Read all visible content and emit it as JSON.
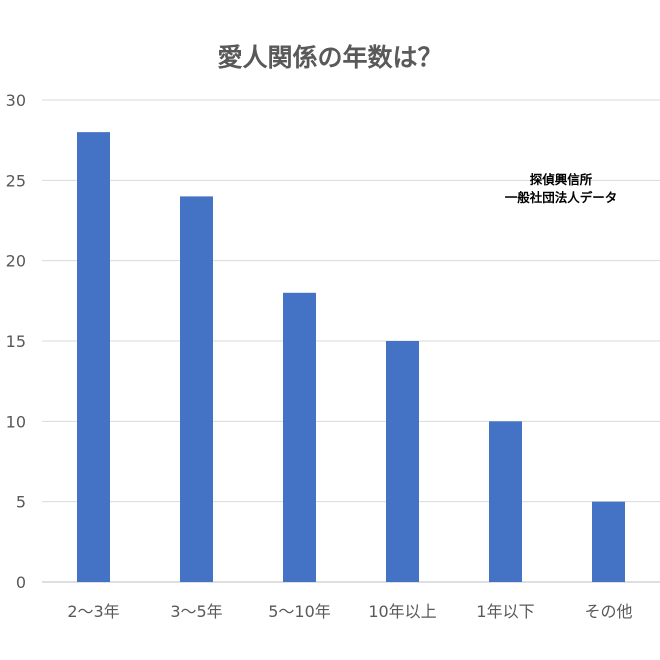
{
  "chart_data": {
    "type": "bar",
    "title": "愛人関係の年数は？",
    "annotation": [
      "探偵興信所",
      "一般社団法人データ"
    ],
    "categories": [
      "2〜3年",
      "3〜5年",
      "5〜10年",
      "10年以上",
      "1年以下",
      "その他"
    ],
    "values": [
      28,
      24,
      18,
      15,
      10,
      5
    ],
    "ylim": [
      0,
      30
    ],
    "yticks": [
      "0",
      "5",
      "10",
      "15",
      "20",
      "25",
      "30"
    ],
    "grid": true,
    "legend": "none",
    "bar_color": "#4472C4",
    "xlabel": "",
    "ylabel": ""
  }
}
